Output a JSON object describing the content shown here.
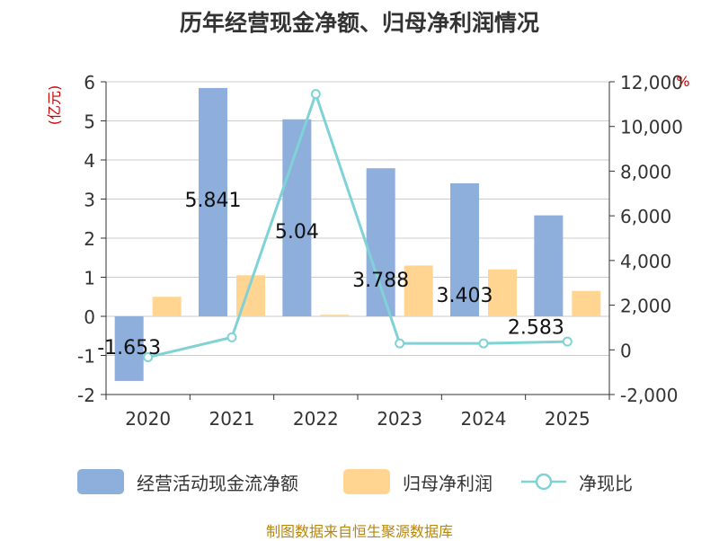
{
  "title": "历年经营现金净额、归母净利润情况",
  "source": "制图数据来自恒生聚源数据库",
  "chart_data": {
    "type": "bar+line",
    "categories": [
      "2020",
      "2021",
      "2022",
      "2023",
      "2024",
      "2025"
    ],
    "series": [
      {
        "name": "经营活动现金流净额",
        "type": "bar",
        "axis": "left",
        "color": "#8eaedc",
        "values": [
          -1.653,
          5.841,
          5.04,
          3.788,
          3.403,
          2.583
        ],
        "labels": [
          "-1.653",
          "5.841",
          "5.04",
          "3.788",
          "3.403",
          "2.583"
        ]
      },
      {
        "name": "归母净利润",
        "type": "bar",
        "axis": "left",
        "color": "#ffd591",
        "values": [
          0.5,
          1.05,
          0.04,
          1.3,
          1.2,
          0.65
        ]
      },
      {
        "name": "净现比",
        "type": "line",
        "axis": "right",
        "color": "#7fd2d6",
        "values": [
          -330,
          560,
          11450,
          290,
          290,
          370
        ]
      }
    ],
    "left_axis": {
      "label": "(亿元)",
      "min": -2,
      "max": 6,
      "ticks": [
        6,
        5,
        4,
        3,
        2,
        1,
        0,
        -1,
        -2
      ],
      "tick_labels": [
        "6",
        "5",
        "4",
        "3",
        "2",
        "1",
        "0",
        "-1",
        "-2"
      ]
    },
    "right_axis": {
      "label": "%",
      "min": -2000,
      "max": 12000,
      "ticks": [
        12000,
        10000,
        8000,
        6000,
        4000,
        2000,
        0,
        -2000
      ],
      "tick_labels": [
        "12,000",
        "10,000",
        "8,000",
        "6,000",
        "4,000",
        "2,000",
        "0",
        "-2,000"
      ]
    },
    "grid": true,
    "legend_position": "bottom"
  },
  "colors": {
    "bar1": "#8eaedc",
    "bar2": "#ffd591",
    "line": "#7fd2d6",
    "unit": "#cc0000",
    "axis": "#333333",
    "grid": "#cccccc"
  }
}
